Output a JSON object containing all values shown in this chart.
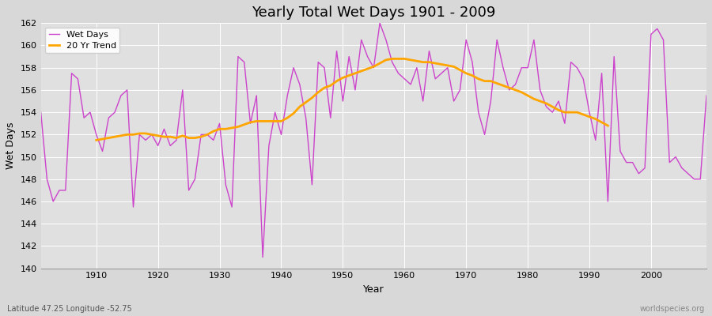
{
  "title": "Yearly Total Wet Days 1901 - 2009",
  "xlabel": "Year",
  "ylabel": "Wet Days",
  "subtitle": "Latitude 47.25 Longitude -52.75",
  "watermark": "worldspecies.org",
  "legend": [
    "Wet Days",
    "20 Yr Trend"
  ],
  "wet_days_color": "#CC44CC",
  "trend_color": "#FFA500",
  "fig_bg_color": "#D8D8D8",
  "plot_bg_color": "#E0E0E0",
  "ylim": [
    140,
    162
  ],
  "xlim": [
    1901,
    2009
  ],
  "ytick_step": 2,
  "xticks": [
    1910,
    1920,
    1930,
    1940,
    1950,
    1960,
    1970,
    1980,
    1990,
    2000
  ],
  "title_fontsize": 13,
  "label_fontsize": 9,
  "tick_fontsize": 8,
  "legend_fontsize": 8,
  "years": [
    1901,
    1902,
    1903,
    1904,
    1905,
    1906,
    1907,
    1908,
    1909,
    1910,
    1911,
    1912,
    1913,
    1914,
    1915,
    1916,
    1917,
    1918,
    1919,
    1920,
    1921,
    1922,
    1923,
    1924,
    1925,
    1926,
    1927,
    1928,
    1929,
    1930,
    1931,
    1932,
    1933,
    1934,
    1935,
    1936,
    1937,
    1938,
    1939,
    1940,
    1941,
    1942,
    1943,
    1944,
    1945,
    1946,
    1947,
    1948,
    1949,
    1950,
    1951,
    1952,
    1953,
    1954,
    1955,
    1956,
    1957,
    1958,
    1959,
    1960,
    1961,
    1962,
    1963,
    1964,
    1965,
    1966,
    1967,
    1968,
    1969,
    1970,
    1971,
    1972,
    1973,
    1974,
    1975,
    1976,
    1977,
    1978,
    1979,
    1980,
    1981,
    1982,
    1983,
    1984,
    1985,
    1986,
    1987,
    1988,
    1989,
    1990,
    1991,
    1992,
    1993,
    1994,
    1995,
    1996,
    1997,
    1998,
    1999,
    2000,
    2001,
    2002,
    2003,
    2004,
    2005,
    2006,
    2007,
    2008,
    2009
  ],
  "wet_days": [
    154,
    148,
    146,
    147,
    147,
    157.5,
    157,
    153.5,
    154,
    152,
    150.5,
    153.5,
    154,
    155.5,
    156,
    145.5,
    152,
    151.5,
    152,
    151,
    152.5,
    151,
    151.5,
    156,
    147,
    148,
    152,
    152,
    151.5,
    153,
    147.5,
    145.5,
    159,
    158.5,
    153,
    155.5,
    141,
    151,
    154,
    152,
    155.5,
    158,
    156.5,
    153.5,
    147.5,
    158.5,
    158,
    153.5,
    159.5,
    155,
    159,
    156,
    160.5,
    159,
    158,
    162,
    160.5,
    158.5,
    157.5,
    157,
    156.5,
    158,
    155,
    159.5,
    157,
    157.5,
    158,
    155,
    156,
    160.5,
    158.5,
    154,
    152,
    155,
    160.5,
    158,
    156,
    156.5,
    158,
    158,
    160.5,
    156,
    154.5,
    154,
    155,
    153,
    158.5,
    158,
    157,
    154,
    151.5,
    157.5,
    146,
    159,
    150.5,
    149.5,
    149.5,
    148.5,
    149,
    161,
    161.5,
    160.5,
    149.5,
    150,
    149,
    148.5,
    148,
    148,
    155.5
  ],
  "trend": [
    null,
    null,
    null,
    null,
    null,
    null,
    null,
    null,
    null,
    151.5,
    151.6,
    151.7,
    151.8,
    151.9,
    152.0,
    152.0,
    152.1,
    152.1,
    152.0,
    151.9,
    151.8,
    151.8,
    151.7,
    151.9,
    151.7,
    151.7,
    151.8,
    152.0,
    152.3,
    152.5,
    152.5,
    152.6,
    152.7,
    152.9,
    153.1,
    153.2,
    153.2,
    153.2,
    153.2,
    153.2,
    153.5,
    153.9,
    154.5,
    154.9,
    155.3,
    155.8,
    156.2,
    156.4,
    156.8,
    157.1,
    157.3,
    157.5,
    157.7,
    157.9,
    158.1,
    158.4,
    158.7,
    158.8,
    158.8,
    158.8,
    158.7,
    158.6,
    158.5,
    158.5,
    158.4,
    158.3,
    158.2,
    158.1,
    157.8,
    157.5,
    157.3,
    157.0,
    156.8,
    156.8,
    156.6,
    156.4,
    156.2,
    156.0,
    155.8,
    155.5,
    155.2,
    155.0,
    154.8,
    154.5,
    154.2,
    154.0,
    154.0,
    154.0,
    153.8,
    153.6,
    153.4,
    153.1,
    152.8,
    null,
    null,
    null,
    null,
    null,
    null,
    null,
    null,
    null,
    null,
    null,
    null,
    null,
    null,
    null,
    null
  ]
}
